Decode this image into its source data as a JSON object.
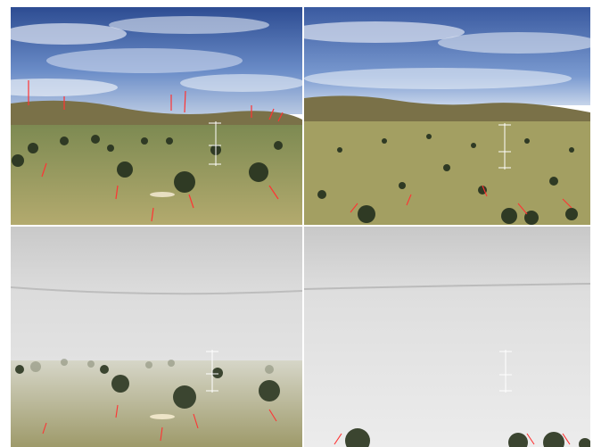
{
  "screen": {
    "description_free": true,
    "panels": [
      {
        "id": "top-left",
        "condition": "clear",
        "view": "low-altitude"
      },
      {
        "id": "top-right",
        "condition": "clear",
        "view": "higher-altitude"
      },
      {
        "id": "bottom-left",
        "condition": "foggy",
        "view": "low-altitude"
      },
      {
        "id": "bottom-right",
        "condition": "foggy",
        "view": "higher-altitude"
      }
    ]
  },
  "colors": {
    "sky_blue": "#3f63a8",
    "cloud_white": "#dfe6f2",
    "ground_olive": "#a39f62",
    "tree_dark": "#2f3a24",
    "flow_vector": "#ff3333",
    "hud": "#ffffff",
    "fog": "#e6e6e6",
    "fog_sky": "#cfcfcf"
  },
  "icons": {
    "flow_vector": "red-arrow-icon",
    "altitude_ladder": "hud-ladder-icon"
  }
}
